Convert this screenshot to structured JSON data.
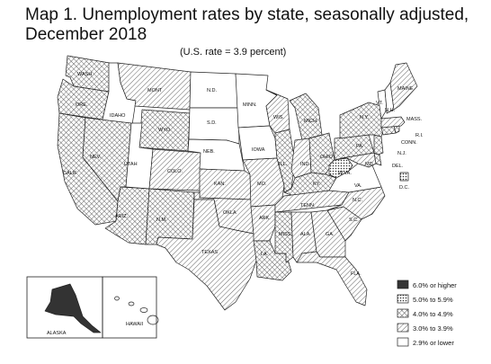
{
  "title_line1": "Map 1. Unemployment rates by state, seasonally adjusted,",
  "title_line2": "December 2018",
  "subtitle": "(U.S. rate = 3.9 percent)",
  "legend": [
    {
      "label": "6.0% or higher",
      "pattern": "solid"
    },
    {
      "label": "5.0% to 5.9%",
      "pattern": "dots"
    },
    {
      "label": "4.0% to 4.9%",
      "pattern": "cross"
    },
    {
      "label": "3.0% to 3.9%",
      "pattern": "hatch"
    },
    {
      "label": "2.9% or lower",
      "pattern": "white"
    }
  ],
  "states": {
    "WASH": "cross",
    "ORE": "cross",
    "CALIF": "cross",
    "IDAHO": "white",
    "NEV": "cross",
    "MONT": "hatch",
    "WYO": "cross",
    "UTAH": "white",
    "ARIZ": "cross",
    "COLO": "hatch",
    "N.M.": "cross",
    "N.D.": "white",
    "S.D.": "white",
    "NEB.": "white",
    "KAN.": "hatch",
    "OKLA": "hatch",
    "TEXAS": "hatch",
    "MINN.": "white",
    "IOWA": "white",
    "MO.": "hatch",
    "ARK.": "hatch",
    "LA.": "cross",
    "WIS.": "hatch",
    "ILL.": "cross",
    "MICH.": "cross",
    "IND.": "hatch",
    "OHIO": "cross",
    "KY.": "cross",
    "TENN.": "hatch",
    "MISS.": "cross",
    "ALA.": "hatch",
    "GA.": "hatch",
    "FLA.": "hatch",
    "S.C.": "hatch",
    "N.C.": "hatch",
    "VA.": "white",
    "W.VA.": "dots",
    "PA.": "cross",
    "N.Y.": "cross",
    "MAINE": "hatch",
    "VT.": "white",
    "N.H.": "white",
    "MASS.": "hatch",
    "R.I.": "cross",
    "CONN.": "cross",
    "N.J.": "cross",
    "DEL.": "cross",
    "MD.": "hatch",
    "D.C.": "dots",
    "ALASKA": "solid",
    "HAWAII": "white"
  }
}
